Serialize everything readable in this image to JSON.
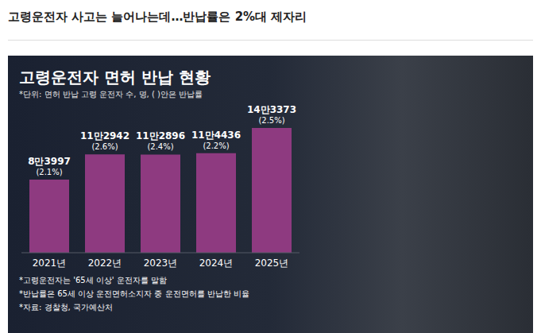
{
  "headline": "고령운전자 사고는 늘어나는데…반납률은 2%대 제자리",
  "chart_data": {
    "type": "bar",
    "title": "고령운전자 면허 반납 현황",
    "subtitle": "*단위: 면허 반납 고령 운전자 수, 명, ( )안은 반납률",
    "categories": [
      "2021년",
      "2022년",
      "2023년",
      "2024년",
      "2025년"
    ],
    "values": [
      83997,
      112942,
      112896,
      114436,
      143373
    ],
    "value_labels": [
      "8만3997",
      "11만2942",
      "11만2896",
      "11만4436",
      "14만3373"
    ],
    "rates": [
      2.1,
      2.6,
      2.4,
      2.2,
      2.5
    ],
    "rate_labels": [
      "(2.1%)",
      "(2.6%)",
      "(2.4%)",
      "(2.2%)",
      "(2.5%)"
    ],
    "color": "#8e3a80",
    "ylim": [
      0,
      200000
    ],
    "data_labels": true,
    "tick_labels": "x",
    "grid": false,
    "notes": [
      "*고령운전자는 '65세 이상' 운전자를 말함",
      "*반납률은 65세 이상 운전면허소지자 중 운전면허를 반납한 비율",
      "*자료: 경찰청, 국가예산처"
    ]
  }
}
